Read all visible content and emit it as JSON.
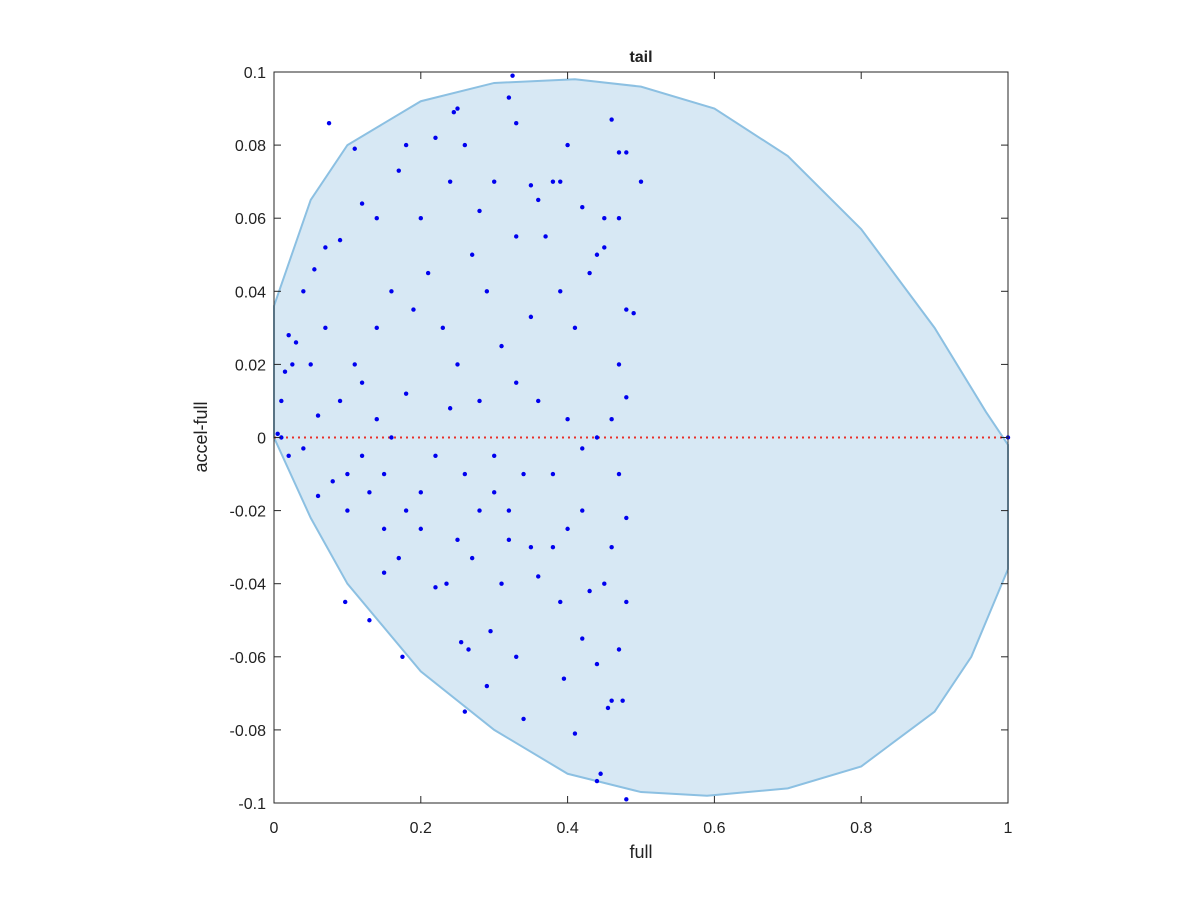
{
  "chart_data": {
    "type": "scatter",
    "title": "tail",
    "xlabel": "full",
    "ylabel": "accel-full",
    "xlim": [
      0,
      1
    ],
    "ylim": [
      -0.1,
      0.1
    ],
    "xticks": [
      0,
      0.2,
      0.4,
      0.6,
      0.8,
      1
    ],
    "yticks": [
      -0.1,
      -0.08,
      -0.06,
      -0.04,
      -0.02,
      0,
      0.02,
      0.04,
      0.06,
      0.08,
      0.1
    ],
    "region": {
      "color": "#d7e8f4",
      "edge_color": "#8cc0e2",
      "x": [
        0,
        0.05,
        0.1,
        0.2,
        0.3,
        0.41,
        0.5,
        0.6,
        0.7,
        0.8,
        0.9,
        0.97,
        1,
        1,
        0.95,
        0.9,
        0.8,
        0.7,
        0.59,
        0.5,
        0.4,
        0.3,
        0.2,
        0.1,
        0.05,
        0
      ],
      "y": [
        0.036,
        0.065,
        0.08,
        0.092,
        0.097,
        0.098,
        0.096,
        0.09,
        0.077,
        0.057,
        0.03,
        0.007,
        -0.002,
        -0.036,
        -0.06,
        -0.075,
        -0.09,
        -0.096,
        -0.098,
        -0.097,
        -0.092,
        -0.08,
        -0.064,
        -0.04,
        -0.022,
        0
      ]
    },
    "hline": {
      "y": 0,
      "color": "#e8302a"
    },
    "series": [
      {
        "color": "#0000ee",
        "x": [
          0.075,
          0.11,
          0.245,
          0.25,
          0.32,
          0.325,
          0.33,
          0.46,
          0.47,
          0.48,
          0.5,
          0.22,
          0.26,
          0.4,
          0.18,
          0.17,
          0.3,
          0.35,
          0.38,
          0.14,
          0.12,
          0.09,
          0.07,
          0.055,
          0.04,
          0.03,
          0.025,
          0.015,
          0.01,
          0.005,
          0.02,
          0.04,
          0.06,
          0.08,
          0.1,
          0.097,
          0.13,
          0.15,
          0.175,
          0.17,
          0.2,
          0.22,
          0.235,
          0.26,
          0.255,
          0.265,
          0.295,
          0.29,
          0.33,
          0.34,
          0.39,
          0.395,
          0.41,
          0.42,
          0.44,
          0.445,
          0.48,
          0.46,
          0.475,
          0.44,
          0.455,
          0.47,
          0.48,
          0.43,
          0.36,
          0.31,
          0.27,
          0.25,
          0.2,
          0.15,
          0.12,
          0.09,
          0.11,
          0.14,
          0.16,
          0.19,
          0.21,
          0.23,
          0.25,
          0.27,
          0.29,
          0.31,
          0.33,
          0.35,
          0.37,
          0.39,
          0.41,
          0.43,
          0.45,
          0.47,
          0.48,
          0.49,
          0.47,
          0.48,
          0.46,
          0.44,
          0.42,
          0.4,
          0.38,
          0.36,
          0.34,
          0.32,
          0.3,
          0.28,
          0.26,
          0.24,
          0.22,
          0.18,
          0.16,
          0.14,
          0.12,
          0.1,
          0.06,
          0.05,
          0.07,
          0.02,
          0.01,
          0.2,
          0.24,
          0.28,
          0.33,
          0.36,
          0.42,
          0.45,
          0.39,
          0.44,
          0.47,
          0.48,
          0.46,
          0.45,
          0.42,
          0.4,
          0.38,
          0.35,
          0.32,
          0.3,
          0.28,
          0.18,
          0.15,
          0.13,
          1
        ],
        "y": [
          0.086,
          0.079,
          0.089,
          0.09,
          0.093,
          0.099,
          0.086,
          0.087,
          0.078,
          0.078,
          0.07,
          0.082,
          0.08,
          0.08,
          0.08,
          0.073,
          0.07,
          0.069,
          0.07,
          0.06,
          0.064,
          0.054,
          0.052,
          0.046,
          0.04,
          0.026,
          0.02,
          0.018,
          0.01,
          0.001,
          -0.005,
          -0.003,
          -0.016,
          -0.012,
          -0.02,
          -0.045,
          -0.05,
          -0.037,
          -0.06,
          -0.033,
          -0.025,
          -0.041,
          -0.04,
          -0.075,
          -0.056,
          -0.058,
          -0.053,
          -0.068,
          -0.06,
          -0.077,
          -0.045,
          -0.066,
          -0.081,
          -0.055,
          -0.094,
          -0.092,
          -0.099,
          -0.072,
          -0.072,
          -0.062,
          -0.074,
          -0.058,
          -0.045,
          -0.042,
          -0.038,
          -0.04,
          -0.033,
          -0.028,
          -0.015,
          -0.01,
          -0.005,
          0.01,
          0.02,
          0.03,
          0.04,
          0.035,
          0.045,
          0.03,
          0.02,
          0.05,
          0.04,
          0.025,
          0.015,
          0.033,
          0.055,
          0.04,
          0.03,
          0.045,
          0.052,
          0.06,
          0.035,
          0.034,
          0.02,
          0.011,
          0.005,
          0,
          -0.003,
          0.005,
          -0.01,
          0.01,
          -0.01,
          -0.02,
          -0.005,
          0.01,
          -0.01,
          0.008,
          -0.005,
          0.012,
          0,
          0.005,
          0.015,
          -0.01,
          0.006,
          0.02,
          0.03,
          0.028,
          0,
          0.06,
          0.07,
          0.062,
          0.055,
          0.065,
          0.063,
          0.06,
          0.07,
          0.05,
          -0.01,
          -0.022,
          -0.03,
          -0.04,
          -0.02,
          -0.025,
          -0.03,
          -0.03,
          -0.028,
          -0.015,
          -0.02,
          -0.02,
          -0.025,
          -0.015,
          0
        ]
      }
    ]
  }
}
